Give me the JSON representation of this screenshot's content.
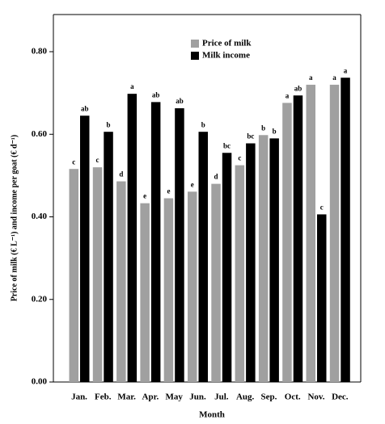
{
  "chart_data": {
    "type": "bar",
    "x_label": "Month",
    "y_label": "Price of milk (€ L⁻¹) and income per goat (€ d⁻¹)",
    "categories": [
      "Jan.",
      "Feb.",
      "Mar.",
      "Apr.",
      "May",
      "Jun.",
      "Jul.",
      "Aug.",
      "Sep.",
      "Oct.",
      "Nov.",
      "Dec."
    ],
    "series": [
      {
        "name": "Price of milk",
        "color": "#a0a0a0",
        "values": [
          0.516,
          0.52,
          0.486,
          0.433,
          0.445,
          0.461,
          0.48,
          0.525,
          0.598,
          0.676,
          0.72,
          0.72
        ],
        "letters": [
          "c",
          "c",
          "d",
          "e",
          "e",
          "e",
          "d",
          "c",
          "b",
          "a",
          "a",
          "a"
        ]
      },
      {
        "name": "Milk income",
        "color": "#000000",
        "values": [
          0.645,
          0.606,
          0.698,
          0.678,
          0.663,
          0.606,
          0.555,
          0.578,
          0.59,
          0.694,
          0.406,
          0.737
        ],
        "letters": [
          "ab",
          "b",
          "a",
          "ab",
          "ab",
          "b",
          "bc",
          "bc",
          "b",
          "ab",
          "c",
          "a"
        ]
      }
    ],
    "ylim": [
      0,
      0.89
    ],
    "yticks": [
      {
        "value": 0,
        "label": "0.00"
      },
      {
        "value": 0.2,
        "label": "0.20"
      },
      {
        "value": 0.4,
        "label": "0.40"
      },
      {
        "value": 0.6,
        "label": "0.60"
      },
      {
        "value": 0.8,
        "label": "0.80"
      }
    ],
    "grid": false
  }
}
